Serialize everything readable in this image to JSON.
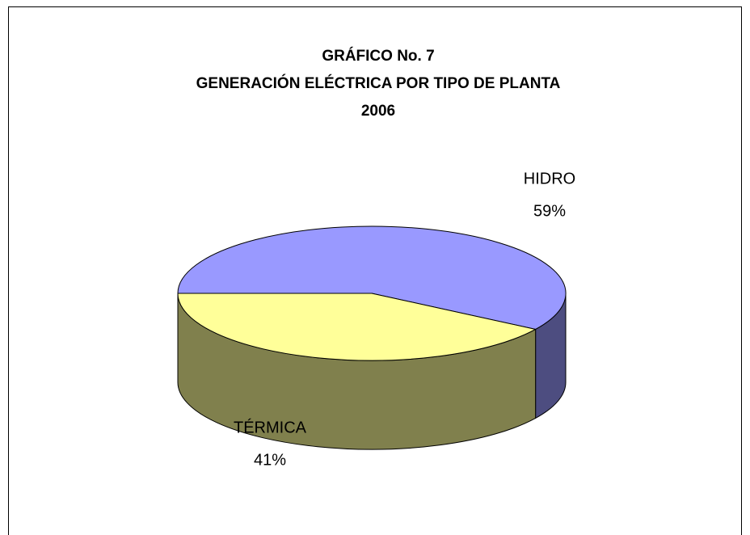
{
  "chart_data": {
    "type": "pie3d",
    "title": "GRÁFICO  No. 7",
    "subtitle": [
      "GENERACIÓN ELÉCTRICA POR TIPO DE PLANTA",
      "2006"
    ],
    "categories": [
      "HIDRO",
      "TÉRMICA"
    ],
    "values": [
      59,
      41
    ],
    "value_labels": [
      "59%",
      "41%"
    ],
    "colors": [
      "#9999ff",
      "#ffff99"
    ]
  }
}
